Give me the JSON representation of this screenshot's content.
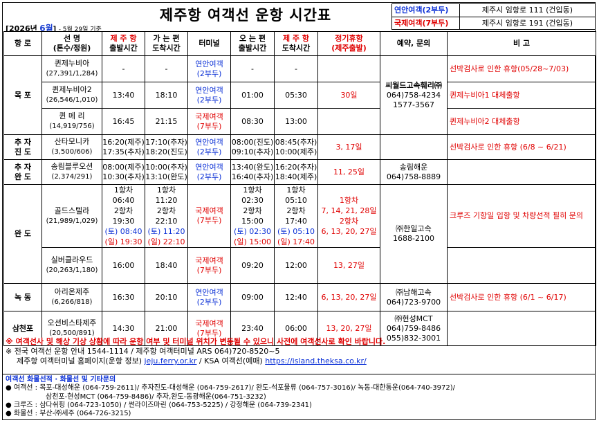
{
  "title": "제주항 여객선 운항 시간표",
  "date": {
    "year": "[2026년",
    "month": "6월",
    "close": "]",
    "note": "- 5월 29일 기준"
  },
  "terminals": [
    {
      "label": "연안여객(2부두)",
      "address": "제주시 임항로 111 (건입동)",
      "color": "#0a2fd6"
    },
    {
      "label": "국제여객(7부두)",
      "address": "제주시 임항로 191 (건입동)",
      "color": "#e00000"
    }
  ],
  "headers": {
    "route": "항 로",
    "ship": "선 명",
    "ship_sub": "(톤수/정원)",
    "dep_jeju": "제 주 항",
    "dep_jeju_sub": "출발시간",
    "arr_go": "가 는 편",
    "arr_go_sub": "도착시간",
    "terminal": "터미널",
    "dep_return": "오 는 편",
    "dep_return_sub": "출발시간",
    "arr_jeju": "제 주 항",
    "arr_jeju_sub": "도착시간",
    "closed": "정기휴항",
    "closed_sub": "(제주출발)",
    "booking": "예약, 문의",
    "remarks": "비 고"
  },
  "rows": {
    "mokpo": {
      "route": "목 포",
      "booking": [
        "씨월드고속훼리㈜",
        "064)758-4234",
        "1577-3567"
      ],
      "ships": [
        {
          "name": "퀸제누비아",
          "spec": "(27,391/1,284)",
          "dep": "-",
          "arr": "-",
          "term1": "연안여객",
          "term2": "(2부두)",
          "rdep": "-",
          "rarr": "-",
          "closed": "",
          "remark": "선박검사로 인한 휴항(05/28~7/03)"
        },
        {
          "name": "퀸제누비아2",
          "spec": "(26,546/1,010)",
          "dep": "13:40",
          "arr": "18:10",
          "term1": "연안여객",
          "term2": "(2부두)",
          "rdep": "01:00",
          "rarr": "05:30",
          "closed": "30일",
          "remark": "퀸제누비아1 대체출항"
        },
        {
          "name": "퀸 메 리",
          "spec": "(14,919/756)",
          "dep": "16:45",
          "arr": "21:15",
          "term1": "국제여객",
          "term2": "(7부두)",
          "rdep": "08:30",
          "rarr": "13:00",
          "closed": "",
          "remark": "퀸제누비아2 대체출항"
        }
      ]
    },
    "chuja_jindo": {
      "route1": "추 자",
      "route2": "진 도",
      "name": "산타모니카",
      "spec": "(3,500/606)",
      "dep1": "16:20(제주)",
      "dep2": "17:35(추자)",
      "arr1": "17:10(추자)",
      "arr2": "18:20(진도)",
      "term1": "연안여객",
      "term2": "(2부두)",
      "rdep1": "08:00(진도)",
      "rdep2": "09:10(추자)",
      "rarr1": "08:45(추자)",
      "rarr2": "10:00(제주)",
      "closed": "3, 17일",
      "remark": "선박검사로 인한 휴항 (6/8 ~ 6/21)"
    },
    "chuja_wando": {
      "route1": "추 자",
      "route2": "완 도",
      "name": "송림블루오션",
      "spec": "(2,374/291)",
      "dep1": "08:00(제주)",
      "dep2": "10:30(추자)",
      "arr1": "10:00(추자)",
      "arr2": "13:10(완도)",
      "term1": "연안여객",
      "term2": "(2부두)",
      "rdep1": "13:40(완도)",
      "rdep2": "16:40(추자)",
      "rarr1": "16:20(추자)",
      "rarr2": "18:40(제주)",
      "closed": "11, 25일",
      "booking": [
        "송림해운",
        "064)758-8889"
      ]
    },
    "wando": {
      "route": "완 도",
      "booking": [
        "㈜한일고속",
        "1688-2100"
      ],
      "remark": "크루즈 기항일 입항 및 차량선적 필히 문의",
      "gold": {
        "name": "골드스텔라",
        "spec": "(21,989/1,029)",
        "dep": [
          "1항차 06:40",
          "2항차 19:30",
          "(토) 08:40",
          "(일) 19:30"
        ],
        "arr": [
          "1항차 11:20",
          "2항차 22:10",
          "(토) 11:20",
          "(일) 22:10"
        ],
        "term1": "국제여객",
        "term2": "(7부두)",
        "rdep": [
          "1항차 02:30",
          "2항차 15:00",
          "(토) 02:30",
          "(일) 15:00"
        ],
        "rarr": [
          "1항차 05:10",
          "2항차 17:40",
          "(토) 05:10",
          "(일) 17:40"
        ],
        "closed": [
          "1항차",
          "7, 14, 21, 28일",
          "2항차",
          "6, 13, 20, 27일"
        ]
      },
      "silver": {
        "name": "실버클라우드",
        "spec": "(20,263/1,180)",
        "dep": "16:00",
        "arr": "18:40",
        "term1": "국제여객",
        "term2": "(7부두)",
        "rdep": "09:20",
        "rarr": "12:00",
        "closed": "13, 27일"
      }
    },
    "nokdong": {
      "route": "녹 동",
      "name": "아리온제주",
      "spec": "(6,266/818)",
      "dep": "16:30",
      "arr": "20:10",
      "term1": "연안여객",
      "term2": "(2부두)",
      "rdep": "09:00",
      "rarr": "12:40",
      "closed": "6, 13, 20, 27일",
      "booking": [
        "㈜남해고속",
        "064)723-9700"
      ],
      "remark": "선박검사로 인한 휴항 (6/1 ~ 6/17)"
    },
    "samcheonpo": {
      "route": "삼천포",
      "name": "오션비스타제주",
      "spec": "(20,500/891)",
      "dep": "14:30",
      "arr": "21:00",
      "term1": "국제여객",
      "term2": "(7부두)",
      "rdep": "23:40",
      "rarr": "06:00",
      "closed": "13, 20, 27일",
      "booking": [
        "㈜현성MCT",
        "064)759-8486",
        "055)832-3001"
      ]
    }
  },
  "notes": {
    "warning": "※ 여객선사 및 해상 기상 상황에 따라 운항 여부 및 터미널 위치가 변동될 수 있으니 사전에 여객선사로 확인 바랍니다.",
    "info1": "※ 전국 여객선 운항 안내 1544-1114 / 제주항 여객터미널 ARS 064)720-8520~5",
    "info2_prefix": "제주항 여객터미널 홈페이지(운항 정보)",
    "info2_link1": "jeju.ferry.or.kr",
    "info2_mid": "/ KSA 여객선(예매)",
    "info2_link2": "https://island.theksa.co.kr/"
  },
  "contacts": {
    "head": "여객선 화물선적 · 화물선 및 기타문의",
    "line1": "● 여객선 : 목포-대성해운 (064-759-2611)/ 추자진도-대성해운 (064-759-2617)/ 완도-석포물류 (064-757-3016)/ 녹동-대한통운(064-740-3972)/",
    "line2": "삼천포-현성MCT (064-759-8486)/ 추자,완도-동광해운(064-751-3232)",
    "line3": "● 크루즈 : 삼다쉬핑 (064-723-1050) / 썬라이즈마린 (064-753-5225) / 강정해운 (064-739-2341)",
    "line4": "● 화물선 : 부산-㈜세주 (064-726-3215)"
  }
}
